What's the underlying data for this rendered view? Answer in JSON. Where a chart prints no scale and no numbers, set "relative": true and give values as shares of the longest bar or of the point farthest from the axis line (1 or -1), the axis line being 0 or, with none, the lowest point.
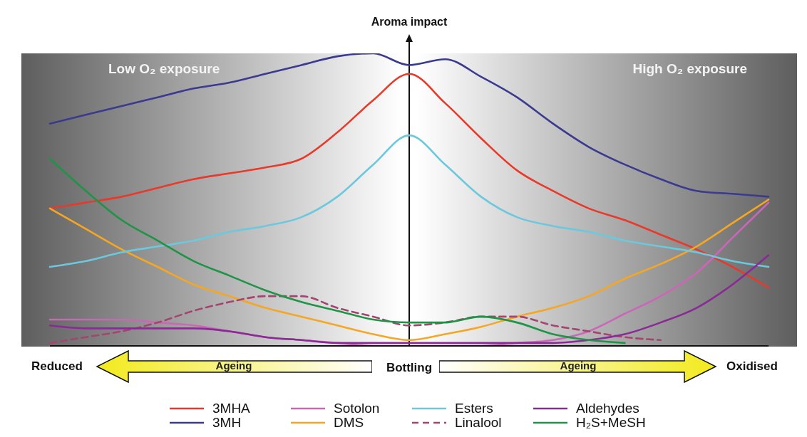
{
  "chart_data": {
    "type": "line",
    "relative": true,
    "ylabel": "Aroma impact",
    "categories": [
      null,
      null,
      null,
      null,
      null,
      null,
      null,
      null,
      null,
      null,
      null,
      null,
      null,
      null,
      null,
      null,
      null,
      null,
      null,
      null,
      null
    ],
    "series": [
      {
        "name": "3MHA",
        "color": "#e8392a",
        "values": [
          0.47,
          0.49,
          0.51,
          0.54,
          0.57,
          0.59,
          0.61,
          0.64,
          0.73,
          0.84,
          0.93,
          0.83,
          0.71,
          0.6,
          0.53,
          0.47,
          0.43,
          0.38,
          0.33,
          0.27,
          0.2
        ]
      },
      {
        "name": "3MH",
        "color": "#3b3a90",
        "values": [
          0.76,
          0.79,
          0.82,
          0.85,
          0.88,
          0.9,
          0.93,
          0.96,
          0.99,
          1.0,
          0.96,
          0.98,
          0.92,
          0.85,
          0.76,
          0.68,
          0.62,
          0.57,
          0.53,
          0.52,
          0.51
        ]
      },
      {
        "name": "Sotolon",
        "color": "#cc66b8",
        "values": [
          0.09,
          0.09,
          0.09,
          0.08,
          0.07,
          0.05,
          0.03,
          0.02,
          0.01,
          0,
          0,
          0,
          0,
          0.01,
          0.02,
          0.05,
          0.11,
          0.17,
          0.25,
          0.37,
          0.49
        ]
      },
      {
        "name": "DMS",
        "color": "#f5a623",
        "values": [
          0.47,
          0.4,
          0.33,
          0.27,
          0.21,
          0.17,
          0.13,
          0.1,
          0.07,
          0.04,
          0.02,
          0.04,
          0.065,
          0.1,
          0.13,
          0.17,
          0.23,
          0.28,
          0.34,
          0.42,
          0.5
        ]
      },
      {
        "name": "Esters",
        "color": "#6cc8dc",
        "values": [
          0.27,
          0.29,
          0.32,
          0.34,
          0.36,
          0.39,
          0.41,
          0.44,
          0.51,
          0.62,
          0.72,
          0.62,
          0.51,
          0.44,
          0.41,
          0.39,
          0.36,
          0.34,
          0.32,
          0.29,
          0.27
        ]
      },
      {
        "name": "Linalool",
        "color": "#a5446f",
        "line_style": "dashed",
        "values": [
          0.01,
          0.03,
          0.05,
          0.08,
          0.12,
          0.15,
          0.17,
          0.17,
          0.13,
          0.1,
          0.07,
          0.08,
          0.1,
          0.1,
          0.07,
          0.05,
          0.03,
          0.02,
          null,
          null,
          null
        ]
      },
      {
        "name": "Aldehydes",
        "color": "#8a2a96",
        "values": [
          0.07,
          0.06,
          0.06,
          0.06,
          0.06,
          0.05,
          0.03,
          0.02,
          0.01,
          0.01,
          0.01,
          0.01,
          0.01,
          0.01,
          0.01,
          0.02,
          0.04,
          0.08,
          0.13,
          0.21,
          0.31
        ]
      },
      {
        "name": "H₂S+MeSH",
        "color": "#1f9447",
        "values": [
          0.64,
          0.53,
          0.43,
          0.36,
          0.29,
          0.24,
          0.19,
          0.15,
          0.12,
          0.09,
          0.08,
          0.08,
          0.1,
          0.08,
          0.04,
          0.02,
          0.01,
          null,
          null,
          null,
          null
        ]
      }
    ],
    "annotations": [
      "Low O₂ exposure",
      "High O₂ exposure",
      "Reduced",
      "Bottling",
      "Oxidised",
      "Ageing",
      "Ageing"
    ],
    "legend": "bottom",
    "marker": "none",
    "line_style": "solid"
  }
}
